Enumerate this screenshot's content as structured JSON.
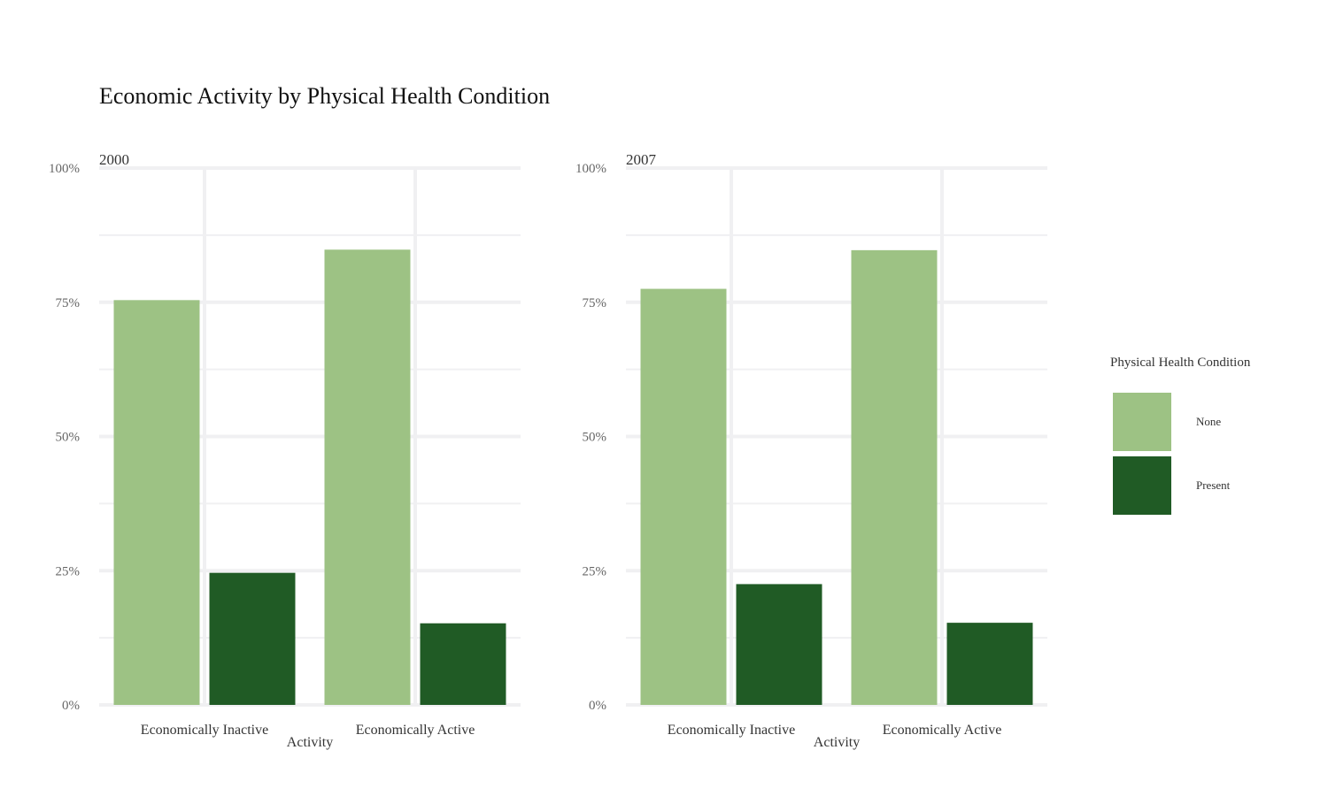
{
  "title": "Economic Activity by Physical Health Condition",
  "colors": {
    "None": "#9dc284",
    "Present": "#205b25",
    "grid": "#f0f0f2"
  },
  "chart_data": {
    "type": "bar",
    "title": "Economic Activity by Physical Health Condition",
    "xlabel": "Activity",
    "ylabel": "",
    "ylim": [
      0,
      1
    ],
    "y_ticks": [
      "0%",
      "25%",
      "50%",
      "75%",
      "100%"
    ],
    "categories": [
      "Economically Inactive",
      "Economically Active"
    ],
    "legend": {
      "title": "Physical Health Condition",
      "position": "right",
      "entries": [
        "None",
        "Present"
      ]
    },
    "grid": true,
    "panels": [
      {
        "title": "2000",
        "series": [
          {
            "name": "None",
            "values": [
              0.754,
              0.848
            ]
          },
          {
            "name": "Present",
            "values": [
              0.246,
              0.152
            ]
          }
        ]
      },
      {
        "title": "2007",
        "series": [
          {
            "name": "None",
            "values": [
              0.775,
              0.847
            ]
          },
          {
            "name": "Present",
            "values": [
              0.225,
              0.153
            ]
          }
        ]
      }
    ]
  }
}
